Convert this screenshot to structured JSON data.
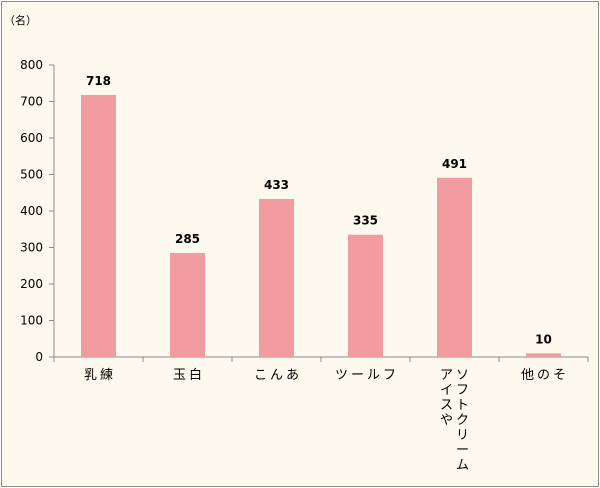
{
  "chart_data": {
    "type": "bar",
    "unit_label": "（名）",
    "categories": [
      "練乳",
      "白玉",
      "あんこ",
      "フルーツ",
      "アイスやソフトクリーム",
      "その他"
    ],
    "category_lines": [
      [
        "練",
        "乳"
      ],
      [
        "白",
        "玉"
      ],
      [
        "あ",
        "ん",
        "こ"
      ],
      [
        "フ",
        "ル",
        "ー",
        "ツ"
      ],
      [
        "ソフトクリーム",
        "アイスや"
      ],
      [
        "そ",
        "の",
        "他"
      ]
    ],
    "values": [
      718,
      285,
      433,
      335,
      491,
      10
    ],
    "data_labels": [
      "718",
      "285",
      "433",
      "335",
      "491",
      "10"
    ],
    "yticks": [
      "0",
      "100",
      "200",
      "300",
      "400",
      "500",
      "600",
      "700",
      "800"
    ],
    "ylim": [
      0,
      800
    ],
    "grid": false,
    "bar_color": "#f09ca0"
  }
}
